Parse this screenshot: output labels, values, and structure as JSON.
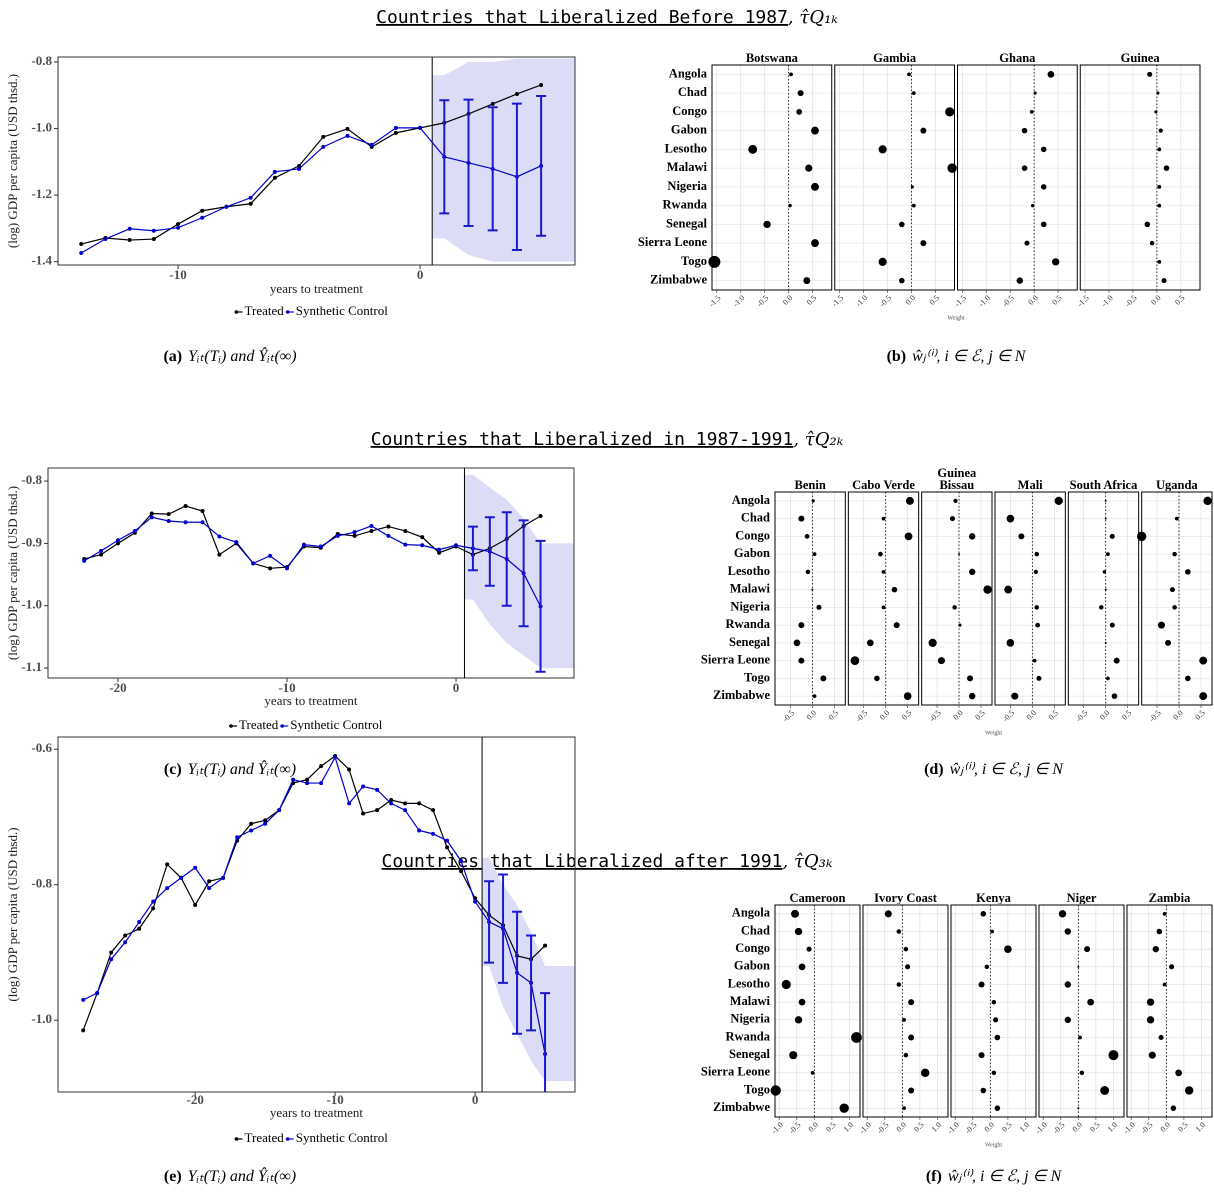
{
  "sections": [
    {
      "title": "Countries that Liberalized Before 1987",
      "symbol": ", τ̂Q₁ₖ"
    },
    {
      "title": "Countries that Liberalized in 1987-1991",
      "symbol": ", τ̂Q₂ₖ"
    },
    {
      "title": "Countries that Liberalized after 1991",
      "symbol": ", τ̂Q₃ₖ"
    }
  ],
  "chart_data": [
    {
      "type": "line",
      "caption_label": "(a)",
      "caption": "Yᵢₜ(Tᵢ) and Ŷᵢₜ(∞)",
      "ylabel": "(log) GDP per capita (USD thsd.)",
      "xlabel": "years to treatment",
      "x": [
        -14,
        -13,
        -12,
        -11,
        -10,
        -9,
        -8,
        -7,
        -6,
        -5,
        -4,
        -3,
        -2,
        -1,
        0,
        1,
        2,
        3,
        4,
        5
      ],
      "series": [
        {
          "name": "Treated",
          "color": "#000000",
          "values": [
            -1.347,
            -1.329,
            -1.335,
            -1.332,
            -1.287,
            -1.247,
            -1.235,
            -1.226,
            -1.148,
            -1.112,
            -1.025,
            -1.001,
            -1.055,
            -1.013,
            -0.998,
            -0.983,
            -0.956,
            -0.926,
            -0.896,
            -0.869
          ]
        },
        {
          "name": "Synthetic Control",
          "color": "#0000cc",
          "values": [
            -1.374,
            -1.332,
            -1.301,
            -1.307,
            -1.298,
            -1.268,
            -1.235,
            -1.208,
            -1.13,
            -1.121,
            -1.055,
            -1.022,
            -1.049,
            -0.998,
            -0.998,
            -1.085,
            -1.103,
            -1.121,
            -1.145,
            -1.112
          ],
          "errors": [
            null,
            null,
            null,
            null,
            null,
            null,
            null,
            null,
            null,
            null,
            null,
            null,
            null,
            null,
            null,
            0.17,
            0.19,
            0.185,
            0.22,
            0.21
          ],
          "band_high": [
            null,
            null,
            null,
            null,
            null,
            null,
            null,
            null,
            null,
            null,
            null,
            null,
            null,
            null,
            null,
            -0.84,
            -0.8,
            -0.8,
            -0.79,
            -0.79
          ],
          "band_low": [
            null,
            null,
            null,
            null,
            null,
            null,
            null,
            null,
            null,
            null,
            null,
            null,
            null,
            null,
            null,
            -1.33,
            -1.38,
            -1.4,
            -1.4,
            -1.4
          ]
        }
      ],
      "error_color": "#1a1acc",
      "band_color": "#dcdcf6",
      "treatment": 0.5,
      "xlim": [
        -14.96,
        6.4
      ],
      "ylim": [
        -1.41,
        -0.785
      ],
      "xticks": [
        -10,
        0
      ],
      "yticks": [
        -0.8,
        {
          "value": -1,
          "label": "-1.0"
        },
        -1.2,
        -1.4
      ]
    },
    {
      "type": "dot",
      "caption_label": "(b)",
      "caption": "ŵⱼ⁽ⁱ⁾, i ∈ ℰ, j ∈ N",
      "xlabel": "Weight",
      "color": "#000000",
      "categories": [
        "Angola",
        "Chad",
        "Congo",
        "Gabon",
        "Lesotho",
        "Malawi",
        "Nigeria",
        "Rwanda",
        "Senegal",
        "Sierra Leone",
        "Togo",
        "Zimbabwe"
      ],
      "series": [
        {
          "name": "Botswana",
          "values": [
            0.05,
            0.25,
            0.22,
            0.55,
            -0.75,
            0.42,
            0.55,
            0.03,
            -0.45,
            0.55,
            -1.55,
            0.38
          ]
        },
        {
          "name": "Gambia",
          "values": [
            -0.05,
            0.05,
            0.8,
            0.25,
            -0.6,
            0.85,
            0.02,
            0.05,
            -0.2,
            0.25,
            -0.6,
            -0.2
          ]
        },
        {
          "name": "Ghana",
          "values": [
            0.35,
            0.02,
            -0.05,
            -0.2,
            0.2,
            -0.2,
            0.2,
            -0.03,
            0.2,
            -0.15,
            0.45,
            -0.3
          ]
        },
        {
          "name": "Guinea",
          "values": [
            -0.15,
            0.02,
            -0.02,
            0.08,
            0.05,
            0.2,
            0.05,
            0.05,
            -0.2,
            -0.1,
            0.05,
            0.15
          ]
        }
      ],
      "xlim": [
        -1.6,
        0.9
      ],
      "xticks": [
        -1.5,
        {
          "value": -1,
          "label": "-1.0"
        },
        -0.5,
        {
          "value": 0,
          "label": "0.0"
        },
        0.5
      ],
      "grid": true
    },
    {
      "type": "line",
      "caption_label": "(c)",
      "caption": "Yᵢₜ(Tᵢ) and Ŷᵢₜ(∞)",
      "ylabel": "(log) GDP per capita (USD thsd.)",
      "xlabel": "years to treatment",
      "x": [
        -22,
        -21,
        -20,
        -19,
        -18,
        -17,
        -16,
        -15,
        -14,
        -13,
        -12,
        -11,
        -10,
        -9,
        -8,
        -7,
        -6,
        -5,
        -4,
        -3,
        -2,
        -1,
        0,
        1,
        2,
        3,
        4,
        5
      ],
      "series": [
        {
          "name": "Treated",
          "color": "#000000",
          "values": [
            -0.925,
            -0.918,
            -0.9,
            -0.883,
            -0.852,
            -0.853,
            -0.84,
            -0.848,
            -0.918,
            -0.9,
            -0.932,
            -0.94,
            -0.938,
            -0.905,
            -0.907,
            -0.885,
            -0.888,
            -0.88,
            -0.873,
            -0.88,
            -0.89,
            -0.915,
            -0.905,
            -0.918,
            -0.908,
            -0.893,
            -0.872,
            -0.856
          ]
        },
        {
          "name": "Synthetic Control",
          "color": "#0000cc",
          "values": [
            -0.928,
            -0.912,
            -0.895,
            -0.88,
            -0.858,
            -0.864,
            -0.866,
            -0.866,
            -0.889,
            -0.898,
            -0.932,
            -0.92,
            -0.94,
            -0.902,
            -0.905,
            -0.888,
            -0.882,
            -0.872,
            -0.888,
            -0.902,
            -0.903,
            -0.91,
            -0.903,
            -0.908,
            -0.913,
            -0.925,
            -0.948,
            -1.001
          ],
          "errors": [
            null,
            null,
            null,
            null,
            null,
            null,
            null,
            null,
            null,
            null,
            null,
            null,
            null,
            null,
            null,
            null,
            null,
            null,
            null,
            null,
            null,
            null,
            null,
            0.035,
            0.055,
            0.075,
            0.085,
            0.105
          ],
          "band_high": [
            null,
            null,
            null,
            null,
            null,
            null,
            null,
            null,
            null,
            null,
            null,
            null,
            null,
            null,
            null,
            null,
            null,
            null,
            null,
            null,
            null,
            null,
            null,
            -0.79,
            -0.81,
            -0.83,
            -0.86,
            -0.9
          ],
          "band_low": [
            null,
            null,
            null,
            null,
            null,
            null,
            null,
            null,
            null,
            null,
            null,
            null,
            null,
            null,
            null,
            null,
            null,
            null,
            null,
            null,
            null,
            null,
            null,
            -0.99,
            -1.03,
            -1.06,
            -1.08,
            -1.1
          ]
        }
      ],
      "error_color": "#1a1acc",
      "band_color": "#dcdcf6",
      "treatment": 0.5,
      "xlim": [
        -24.14,
        6.98
      ],
      "ylim": [
        -1.116,
        -0.779
      ],
      "xticks": [
        -20,
        -10,
        0
      ],
      "yticks": [
        -0.8,
        -0.9,
        {
          "value": -1,
          "label": "-1.0"
        },
        -1.1
      ]
    },
    {
      "type": "dot",
      "caption_label": "(d)",
      "caption": "ŵⱼ⁽ⁱ⁾, i ∈ ℰ, j ∈ N",
      "xlabel": "Weight",
      "color": "#000000",
      "categories": [
        "Angola",
        "Chad",
        "Congo",
        "Gabon",
        "Lesotho",
        "Malawi",
        "Nigeria",
        "Rwanda",
        "Senegal",
        "Sierra Leone",
        "Togo",
        "Zimbabwe"
      ],
      "series": [
        {
          "name": "Benin",
          "values": [
            0.02,
            -0.25,
            -0.12,
            0.05,
            -0.1,
            0.0,
            0.15,
            -0.25,
            -0.35,
            -0.25,
            0.25,
            0.05
          ]
        },
        {
          "name": "Cabo Verde",
          "values": [
            0.55,
            -0.05,
            0.52,
            -0.12,
            -0.05,
            0.2,
            -0.05,
            0.25,
            -0.35,
            -0.7,
            -0.2,
            0.5
          ]
        },
        {
          "name": "Guinea Bissau",
          "values": [
            -0.08,
            -0.15,
            0.3,
            0.0,
            0.3,
            0.65,
            -0.1,
            0.02,
            -0.6,
            -0.4,
            0.25,
            0.3
          ]
        },
        {
          "name": "Mali",
          "values": [
            0.6,
            -0.5,
            -0.25,
            0.1,
            0.08,
            -0.55,
            0.1,
            0.12,
            -0.5,
            0.05,
            0.15,
            -0.4
          ]
        },
        {
          "name": "South Africa",
          "values": [
            0.0,
            0.0,
            0.15,
            0.05,
            -0.03,
            0.0,
            -0.1,
            0.15,
            0.0,
            0.25,
            0.05,
            0.2
          ]
        },
        {
          "name": "Uganda",
          "values": [
            0.65,
            -0.05,
            -0.85,
            -0.1,
            0.2,
            -0.15,
            -0.1,
            -0.4,
            -0.25,
            0.55,
            0.2,
            0.55
          ]
        }
      ],
      "xlim": [
        -0.85,
        0.75
      ],
      "xticks": [
        -0.5,
        {
          "value": 0,
          "label": "0.0"
        },
        0.5
      ],
      "grid": true
    },
    {
      "type": "line",
      "caption_label": "(e)",
      "caption": "Yᵢₜ(Tᵢ) and Ŷᵢₜ(∞)",
      "ylabel": "(log) GDP per capita (USD thsd.)",
      "xlabel": "years to treatment",
      "x": [
        -28,
        -27,
        -26,
        -25,
        -24,
        -23,
        -22,
        -21,
        -20,
        -19,
        -18,
        -17,
        -16,
        -15,
        -14,
        -13,
        -12,
        -11,
        -10,
        -9,
        -8,
        -7,
        -6,
        -5,
        -4,
        -3,
        -2,
        -1,
        0,
        1,
        2,
        3,
        4,
        5
      ],
      "series": [
        {
          "name": "Treated",
          "color": "#000000",
          "values": [
            -1.015,
            -0.96,
            -0.9,
            -0.875,
            -0.865,
            -0.835,
            -0.77,
            -0.79,
            -0.83,
            -0.795,
            -0.79,
            -0.735,
            -0.71,
            -0.705,
            -0.69,
            -0.65,
            -0.645,
            -0.625,
            -0.61,
            -0.63,
            -0.695,
            -0.69,
            -0.675,
            -0.68,
            -0.68,
            -0.69,
            -0.745,
            -0.78,
            -0.82,
            -0.845,
            -0.86,
            -0.905,
            -0.91,
            -0.89
          ]
        },
        {
          "name": "Synthetic Control",
          "color": "#0000cc",
          "values": [
            -0.97,
            -0.96,
            -0.91,
            -0.885,
            -0.855,
            -0.825,
            -0.805,
            -0.79,
            -0.775,
            -0.805,
            -0.79,
            -0.73,
            -0.72,
            -0.71,
            -0.69,
            -0.645,
            -0.65,
            -0.65,
            -0.612,
            -0.68,
            -0.655,
            -0.66,
            -0.68,
            -0.69,
            -0.72,
            -0.725,
            -0.735,
            -0.765,
            -0.825,
            -0.855,
            -0.865,
            -0.93,
            -0.945,
            -1.05
          ],
          "errors": [
            null,
            null,
            null,
            null,
            null,
            null,
            null,
            null,
            null,
            null,
            null,
            null,
            null,
            null,
            null,
            null,
            null,
            null,
            null,
            null,
            null,
            null,
            null,
            null,
            null,
            null,
            null,
            null,
            null,
            0.06,
            0.08,
            0.09,
            0.07,
            0.09
          ],
          "band_high": [
            null,
            null,
            null,
            null,
            null,
            null,
            null,
            null,
            null,
            null,
            null,
            null,
            null,
            null,
            null,
            null,
            null,
            null,
            null,
            null,
            null,
            null,
            null,
            null,
            null,
            null,
            null,
            null,
            null,
            -0.76,
            -0.8,
            -0.83,
            -0.87,
            -0.92
          ],
          "band_low": [
            null,
            null,
            null,
            null,
            null,
            null,
            null,
            null,
            null,
            null,
            null,
            null,
            null,
            null,
            null,
            null,
            null,
            null,
            null,
            null,
            null,
            null,
            null,
            null,
            null,
            null,
            null,
            null,
            null,
            -0.92,
            -0.98,
            -1.02,
            -1.06,
            -1.09
          ]
        }
      ],
      "error_color": "#1a1acc",
      "band_color": "#dcdcf6",
      "treatment": 0.5,
      "xlim": [
        -29.8,
        7.14
      ],
      "ylim": [
        -1.106,
        -0.582
      ],
      "xticks": [
        -20,
        -10,
        0
      ],
      "yticks": [
        -0.6,
        -0.8,
        {
          "value": -1,
          "label": "-1.0"
        }
      ]
    },
    {
      "type": "dot",
      "caption_label": "(f)",
      "caption": "ŵⱼ⁽ⁱ⁾, i ∈ ℰ, j ∈ N",
      "xlabel": "Weight",
      "color": "#000000",
      "categories": [
        "Angola",
        "Chad",
        "Congo",
        "Gabon",
        "Lesotho",
        "Malawi",
        "Nigeria",
        "Rwanda",
        "Senegal",
        "Sierra Leone",
        "Togo",
        "Zimbabwe"
      ],
      "series": [
        {
          "name": "Cameroon",
          "values": [
            -0.55,
            -0.45,
            -0.15,
            -0.35,
            -0.8,
            -0.35,
            -0.45,
            1.2,
            -0.6,
            -0.05,
            -1.1,
            0.85
          ]
        },
        {
          "name": "Ivory Coast",
          "values": [
            -0.4,
            -0.1,
            0.1,
            0.15,
            -0.1,
            0.25,
            0.05,
            0.25,
            0.1,
            0.65,
            0.25,
            0.05
          ]
        },
        {
          "name": "Kenya",
          "values": [
            -0.2,
            0.05,
            0.5,
            -0.1,
            -0.25,
            0.1,
            0.15,
            0.2,
            -0.25,
            0.1,
            -0.2,
            0.2
          ]
        },
        {
          "name": "Niger",
          "values": [
            -0.45,
            -0.3,
            0.25,
            0.0,
            -0.3,
            0.35,
            -0.3,
            0.05,
            1.0,
            0.1,
            0.75,
            0.0
          ]
        },
        {
          "name": "Zambia",
          "values": [
            -0.05,
            -0.2,
            -0.3,
            0.15,
            -0.05,
            -0.45,
            -0.45,
            -0.15,
            -0.4,
            0.35,
            0.65,
            0.2
          ]
        }
      ],
      "xlim": [
        -1.12,
        1.3
      ],
      "xticks": [
        {
          "value": -1,
          "label": "-1.0"
        },
        -0.5,
        {
          "value": 0,
          "label": "0.0"
        },
        0.5,
        {
          "value": 1,
          "label": "1.0"
        }
      ],
      "grid": true
    }
  ]
}
